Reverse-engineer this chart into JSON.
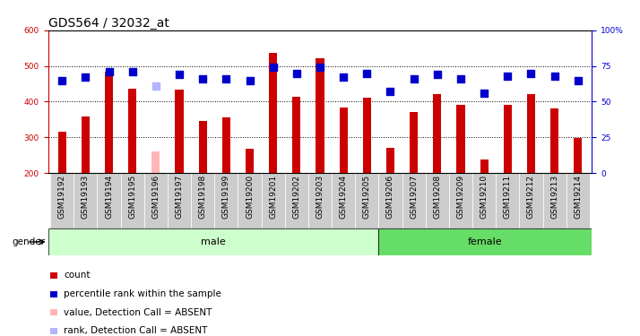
{
  "title": "GDS564 / 32032_at",
  "samples": [
    "GSM19192",
    "GSM19193",
    "GSM19194",
    "GSM19195",
    "GSM19196",
    "GSM19197",
    "GSM19198",
    "GSM19199",
    "GSM19200",
    "GSM19201",
    "GSM19202",
    "GSM19203",
    "GSM19204",
    "GSM19205",
    "GSM19206",
    "GSM19207",
    "GSM19208",
    "GSM19209",
    "GSM19210",
    "GSM19211",
    "GSM19212",
    "GSM19213",
    "GSM19214"
  ],
  "count_values": [
    315,
    358,
    483,
    436,
    261,
    433,
    346,
    357,
    267,
    537,
    414,
    521,
    384,
    411,
    271,
    370,
    420,
    390,
    237,
    390,
    420,
    381,
    299
  ],
  "percentile_values": [
    65,
    67,
    71,
    71,
    61,
    69,
    66,
    66,
    65,
    74,
    70,
    74,
    67,
    70,
    57,
    66,
    69,
    66,
    56,
    68,
    70,
    68,
    65
  ],
  "absent_indices": [
    4
  ],
  "male_count": 14,
  "male_label": "male",
  "female_label": "female",
  "gender_label": "gender",
  "ylim_left": [
    200,
    600
  ],
  "ylim_right": [
    0,
    100
  ],
  "yticks_left": [
    200,
    300,
    400,
    500,
    600
  ],
  "yticks_right": [
    0,
    25,
    50,
    75,
    100
  ],
  "bar_color": "#cc0000",
  "absent_bar_color": "#ffb6b6",
  "dot_color": "#0000cc",
  "absent_dot_color": "#b3b3ff",
  "legend_items": [
    {
      "label": "count",
      "color": "#cc0000"
    },
    {
      "label": "percentile rank within the sample",
      "color": "#0000cc"
    },
    {
      "label": "value, Detection Call = ABSENT",
      "color": "#ffb6b6"
    },
    {
      "label": "rank, Detection Call = ABSENT",
      "color": "#b3b3ff"
    }
  ],
  "background_color": "#ffffff",
  "plot_bg_color": "#ffffff",
  "male_bg_color": "#ccffcc",
  "female_bg_color": "#66dd66",
  "xtick_bg_color": "#cccccc",
  "bar_width": 0.35,
  "dot_size": 28,
  "title_fontsize": 10,
  "tick_fontsize": 6.5,
  "label_fontsize": 7.5
}
